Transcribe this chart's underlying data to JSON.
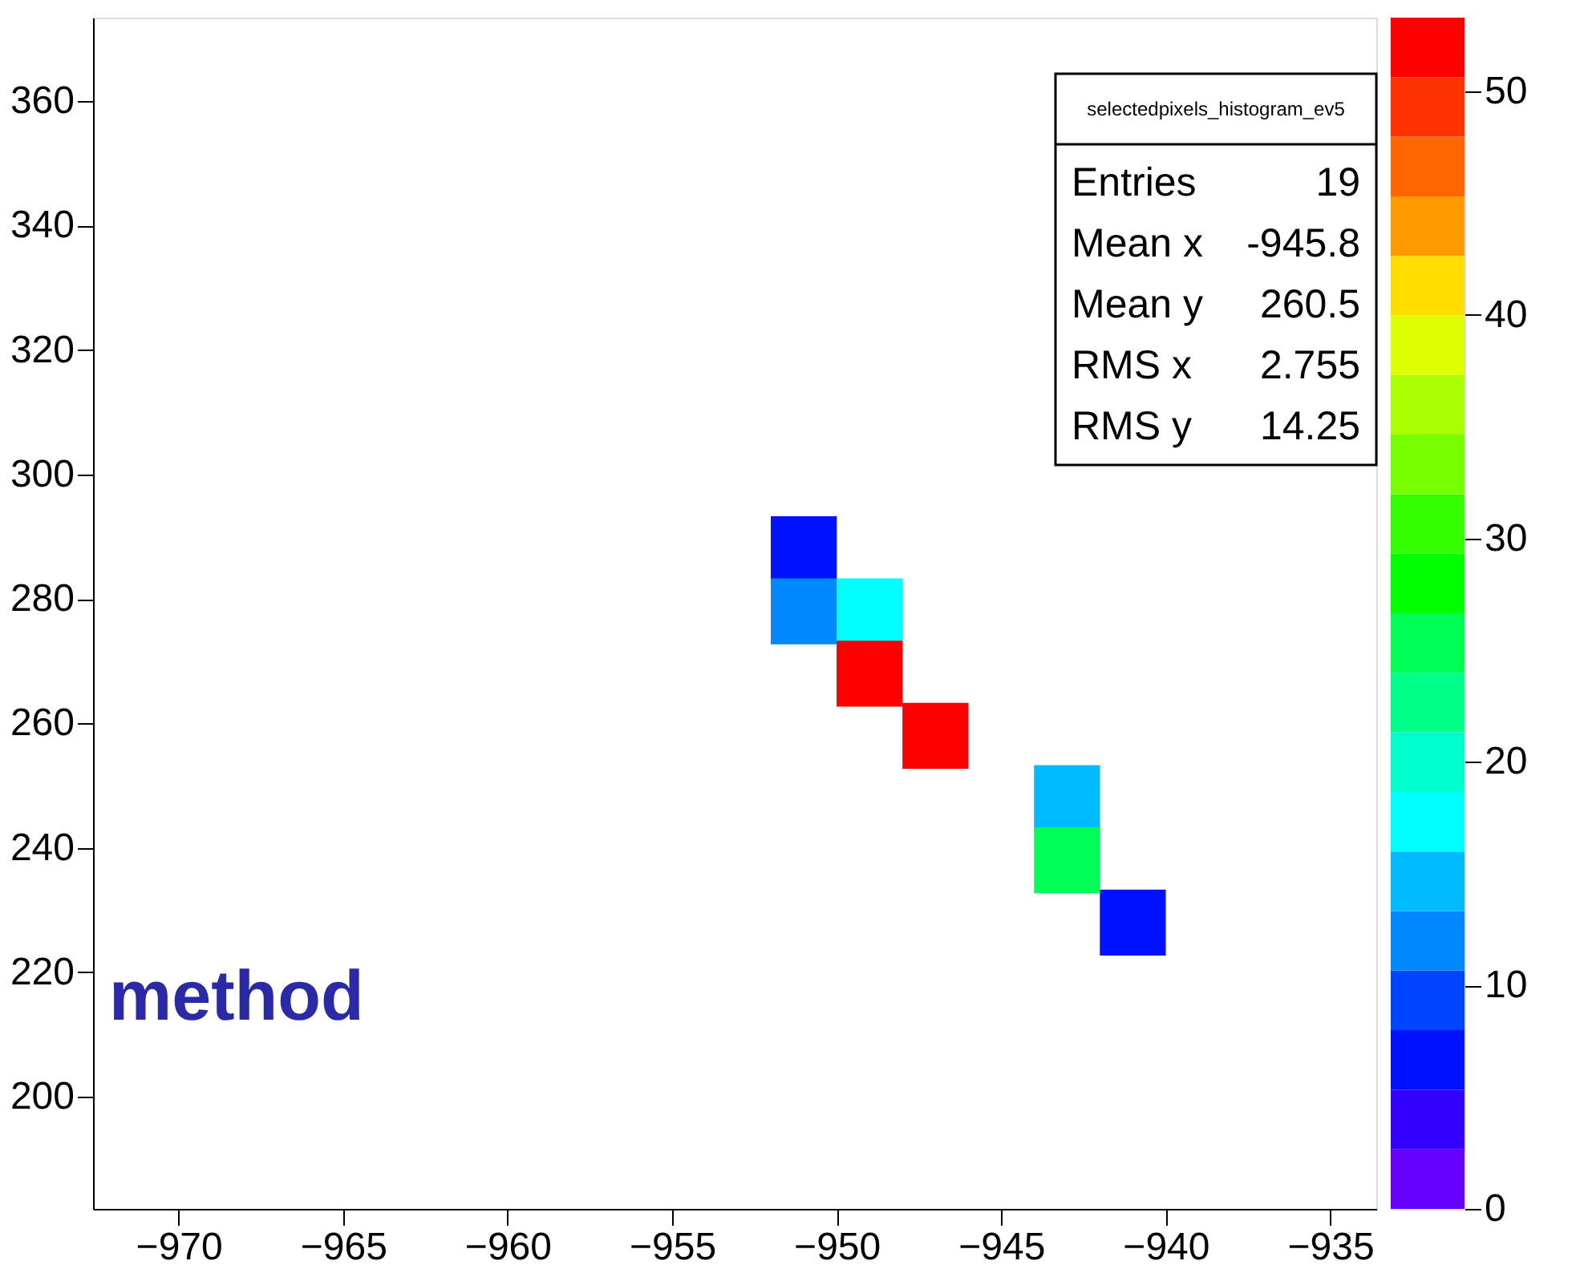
{
  "chart_data": {
    "type": "scatter",
    "marker": "square",
    "x": [
      -951,
      -951,
      -949,
      -949,
      -947,
      -943,
      -943,
      -941
    ],
    "values": [
      288,
      278,
      278,
      268,
      258,
      248,
      238,
      228
    ],
    "cvalues": [
      6.7,
      12,
      17.3,
      52,
      52,
      14.7,
      25.3,
      6.7
    ],
    "clim": [
      0,
      53.3
    ],
    "cticks": [
      0,
      10,
      20,
      30,
      40,
      50
    ],
    "xlim": [
      -972.6,
      -933.6
    ],
    "xticks": [
      -970,
      -965,
      -960,
      -955,
      -950,
      -945,
      -940,
      -935
    ],
    "ylim": [
      182,
      373.4
    ],
    "yticks": [
      200,
      220,
      240,
      260,
      280,
      300,
      320,
      340,
      360
    ],
    "grid": false,
    "annotations": [
      "selectedpixels_histogram_ev5",
      "Entries 19",
      "Mean x -945.8",
      "Mean y 260.5",
      "RMS x 2.755",
      "RMS y 14.25",
      "method"
    ]
  }
}
